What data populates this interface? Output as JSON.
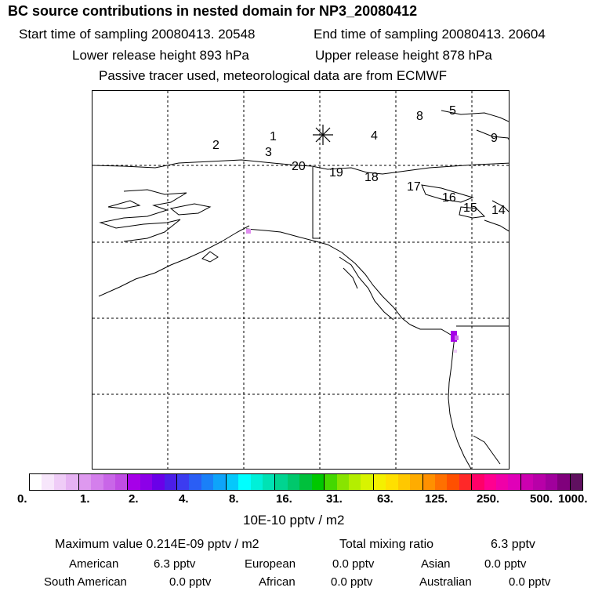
{
  "header": {
    "title": "BC  source contributions in nested domain for NP3_20080412",
    "start_label": "Start time of sampling 20080413. 20548",
    "end_label": "End time of sampling 20080413. 20604",
    "lower_label": "Lower release height  893 hPa",
    "upper_label": "Upper release height  878 hPa",
    "tracer_label": "Passive tracer used, meteorological data are from ECMWF"
  },
  "map": {
    "release_marker": "release-asterisk",
    "track_numbers": [
      "1",
      "2",
      "3",
      "4",
      "5",
      "8",
      "9",
      "14",
      "15",
      "16",
      "17",
      "18",
      "19",
      "20"
    ]
  },
  "colorbar": {
    "colors": [
      "#ffffff",
      "#f7e6fb",
      "#efccf7",
      "#e6b2f3",
      "#de99ef",
      "#d47fec",
      "#c966e8",
      "#c04ce4",
      "#a600e8",
      "#8c00e8",
      "#6a00e8",
      "#4b1ee8",
      "#3c3cf0",
      "#2a5ef5",
      "#1a80f8",
      "#0ea4fa",
      "#05c8fb",
      "#00ffff",
      "#00f0d8",
      "#00e2b4",
      "#00d490",
      "#00c86c",
      "#00c03c",
      "#00c800",
      "#44d800",
      "#88e400",
      "#b4ee00",
      "#d8f400",
      "#f4f000",
      "#ffe000",
      "#ffc800",
      "#ffac00",
      "#ff9000",
      "#ff7000",
      "#ff5000",
      "#ff2828",
      "#ff0068",
      "#ff0090",
      "#f000a8",
      "#e000b8",
      "#cc00b0",
      "#b800a8",
      "#a0009c",
      "#80007c",
      "#601060"
    ],
    "ticks": [
      "0.",
      "1.",
      "2.",
      "4.",
      "8.",
      "16.",
      "31.",
      "63.",
      "125.",
      "250.",
      "500.",
      "1000."
    ],
    "units": "10E-10 pptv / m2"
  },
  "footer": {
    "max_label": "Maximum value  0.214E-09 pptv / m2",
    "total_label": "Total mixing ratio",
    "total_value": "6.3 pptv",
    "rows": [
      [
        {
          "name": "American",
          "value": "6.3 pptv"
        },
        {
          "name": "European",
          "value": "0.0 pptv"
        },
        {
          "name": "Asian",
          "value": "0.0 pptv"
        }
      ],
      [
        {
          "name": "South American",
          "value": "0.0 pptv"
        },
        {
          "name": "African",
          "value": "0.0 pptv"
        },
        {
          "name": "Australian",
          "value": "0.0 pptv"
        }
      ]
    ]
  }
}
